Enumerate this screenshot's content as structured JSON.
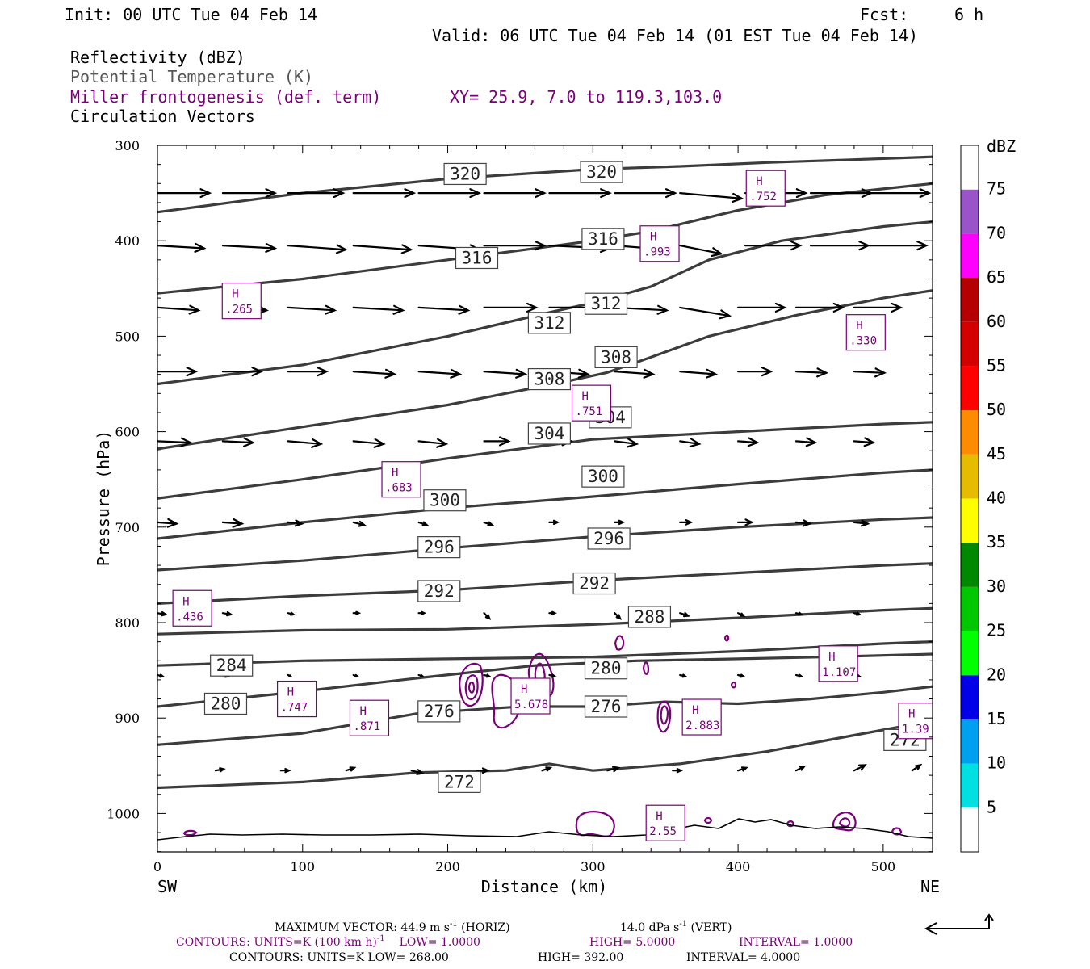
{
  "header": {
    "init": "Init: 00 UTC Tue 04 Feb 14",
    "fcst_label": "Fcst:",
    "fcst_value": "6 h",
    "valid": "Valid: 06 UTC Tue 04 Feb 14 (01 EST Tue 04 Feb 14)",
    "field1": "Reflectivity (dBZ)",
    "field2": "Potential Temperature (K)",
    "field3": "Miller frontogenesis (def. term)",
    "xy": "XY=  25.9,  7.0 to 119.3,103.0",
    "field4": "Circulation Vectors"
  },
  "colors": {
    "theta": "#3c3c3c",
    "fronto": "#7a007a",
    "vectors": "#000000",
    "field2_text": "#555555",
    "field3_text": "#7a007a"
  },
  "chart_data": {
    "type": "line",
    "xlabel": "Distance (km)",
    "ylabel": "Pressure (hPa)",
    "xlim": [
      0,
      534
    ],
    "ylim": [
      1040,
      300
    ],
    "y_scale": "linear, inverted",
    "x_ticks": [
      "0",
      "100",
      "200",
      "300",
      "400",
      "500"
    ],
    "y_ticks": [
      "300",
      "400",
      "500",
      "600",
      "700",
      "800",
      "900",
      "1000"
    ],
    "endpoints": {
      "left": "SW",
      "right": "NE"
    },
    "grid": false,
    "theta_series": [
      {
        "name": "272",
        "x": [
          0,
          100,
          180,
          240,
          270,
          300,
          360,
          420,
          480,
          534
        ],
        "y": [
          973,
          967,
          957,
          955,
          948,
          955,
          948,
          935,
          918,
          903
        ]
      },
      {
        "name": "276",
        "x": [
          0,
          100,
          180,
          250,
          300,
          350,
          400,
          450,
          500,
          534
        ],
        "y": [
          928,
          916,
          895,
          888,
          888,
          883,
          885,
          880,
          873,
          867
        ]
      },
      {
        "name": "280",
        "x": [
          0,
          100,
          180,
          260,
          330,
          400,
          460,
          534
        ],
        "y": [
          888,
          872,
          858,
          845,
          840,
          838,
          836,
          833
        ]
      },
      {
        "name": "284",
        "x": [
          0,
          100,
          200,
          300,
          400,
          500,
          534
        ],
        "y": [
          845,
          840,
          838,
          836,
          830,
          822,
          820
        ]
      },
      {
        "name": "288",
        "x": [
          0,
          100,
          200,
          300,
          400,
          500,
          534
        ],
        "y": [
          812,
          808,
          807,
          802,
          795,
          787,
          785
        ]
      },
      {
        "name": "292",
        "x": [
          0,
          100,
          200,
          300,
          400,
          500,
          534
        ],
        "y": [
          780,
          772,
          766,
          756,
          748,
          740,
          738
        ]
      },
      {
        "name": "296",
        "x": [
          0,
          100,
          200,
          300,
          400,
          500,
          534
        ],
        "y": [
          745,
          735,
          722,
          710,
          700,
          692,
          690
        ]
      },
      {
        "name": "300",
        "x": [
          0,
          100,
          200,
          300,
          400,
          500,
          534
        ],
        "y": [
          712,
          695,
          680,
          668,
          655,
          643,
          640
        ]
      },
      {
        "name": "304",
        "x": [
          0,
          100,
          200,
          300,
          400,
          500,
          534
        ],
        "y": [
          670,
          650,
          628,
          608,
          600,
          592,
          590
        ]
      },
      {
        "name": "308",
        "x": [
          0,
          100,
          200,
          280,
          310,
          340,
          380,
          440,
          500,
          534
        ],
        "y": [
          618,
          595,
          572,
          548,
          538,
          522,
          500,
          478,
          460,
          452
        ]
      },
      {
        "name": "312",
        "x": [
          0,
          100,
          200,
          270,
          300,
          340,
          380,
          430,
          500,
          534
        ],
        "y": [
          550,
          530,
          500,
          475,
          465,
          448,
          420,
          400,
          385,
          380
        ]
      },
      {
        "name": "316",
        "x": [
          0,
          100,
          200,
          260,
          300,
          340,
          400,
          460,
          534
        ],
        "y": [
          455,
          440,
          420,
          408,
          400,
          390,
          368,
          352,
          340
        ]
      },
      {
        "name": "320",
        "x": [
          0,
          100,
          200,
          300,
          360,
          420,
          480,
          534
        ],
        "y": [
          370,
          350,
          335,
          325,
          322,
          318,
          315,
          312
        ]
      }
    ],
    "theta_labels": [
      {
        "text": "320",
        "x": 212,
        "y": 330
      },
      {
        "text": "320",
        "x": 306,
        "y": 328
      },
      {
        "text": "316",
        "x": 220,
        "y": 418
      },
      {
        "text": "316",
        "x": 307,
        "y": 398
      },
      {
        "text": "312",
        "x": 270,
        "y": 486
      },
      {
        "text": "312",
        "x": 309,
        "y": 466
      },
      {
        "text": "308",
        "x": 270,
        "y": 545
      },
      {
        "text": "308",
        "x": 316,
        "y": 522
      },
      {
        "text": "304",
        "x": 270,
        "y": 602
      },
      {
        "text": "304",
        "x": 312,
        "y": 585
      },
      {
        "text": "300",
        "x": 198,
        "y": 672
      },
      {
        "text": "300",
        "x": 307,
        "y": 647
      },
      {
        "text": "296",
        "x": 194,
        "y": 721
      },
      {
        "text": "296",
        "x": 311,
        "y": 712
      },
      {
        "text": "292",
        "x": 194,
        "y": 767
      },
      {
        "text": "292",
        "x": 301,
        "y": 759
      },
      {
        "text": "288",
        "x": 339,
        "y": 794
      },
      {
        "text": "284",
        "x": 51,
        "y": 845
      },
      {
        "text": "280",
        "x": 309,
        "y": 848
      },
      {
        "text": "280",
        "x": 47,
        "y": 885
      },
      {
        "text": "276",
        "x": 194,
        "y": 893
      },
      {
        "text": "276",
        "x": 309,
        "y": 888
      },
      {
        "text": "272",
        "x": 208,
        "y": 967
      },
      {
        "text": "272",
        "x": 515,
        "y": 923
      }
    ],
    "fronto_maxima": [
      {
        "label": "H",
        "value": ".752",
        "x": 419,
        "y": 345
      },
      {
        "label": "H",
        "value": ".993",
        "x": 346,
        "y": 403
      },
      {
        "label": "H",
        "value": ".265",
        "x": 58,
        "y": 463
      },
      {
        "label": "H",
        "value": ".330",
        "x": 488,
        "y": 496
      },
      {
        "label": "H",
        "value": ".751",
        "x": 299,
        "y": 570
      },
      {
        "label": "H",
        "value": ".683",
        "x": 168,
        "y": 650
      },
      {
        "label": "H",
        "value": ".436",
        "x": 24,
        "y": 785
      },
      {
        "label": "H",
        "value": "1.107",
        "x": 469,
        "y": 843
      },
      {
        "label": "H",
        "value": ".747",
        "x": 96,
        "y": 880
      },
      {
        "label": "H",
        "value": "5.678",
        "x": 257,
        "y": 877
      },
      {
        "label": "H",
        "value": "2.883",
        "x": 375,
        "y": 899
      },
      {
        "label": "H",
        "value": ".871",
        "x": 146,
        "y": 900
      },
      {
        "label": "H",
        "value": "1.39",
        "x": 524,
        "y": 903
      },
      {
        "label": "H",
        "value": "2.55",
        "x": 350,
        "y": 1010
      }
    ],
    "vector_rows": [
      {
        "p": 350,
        "x": [
          0,
          45,
          90,
          135,
          180,
          225,
          270,
          315,
          360,
          405,
          450,
          490
        ],
        "u": [
          38,
          38,
          40,
          44,
          44,
          44,
          44,
          44,
          45,
          44,
          44,
          44
        ],
        "w": [
          0,
          0,
          0,
          0,
          0,
          0,
          0,
          0,
          -4,
          0,
          0,
          0
        ]
      },
      {
        "p": 405,
        "x": [
          0,
          45,
          90,
          135,
          180,
          225,
          270,
          315,
          360,
          405,
          450,
          490
        ],
        "u": [
          34,
          38,
          42,
          42,
          44,
          44,
          44,
          38,
          30,
          40,
          42,
          42
        ],
        "w": [
          -2,
          -2,
          -3,
          -3,
          -3,
          0,
          -2,
          -3,
          -6,
          0,
          0,
          0
        ]
      },
      {
        "p": 470,
        "x": [
          0,
          45,
          90,
          135,
          180,
          225,
          270,
          315,
          360,
          400,
          440,
          480
        ],
        "u": [
          30,
          32,
          34,
          36,
          36,
          38,
          36,
          38,
          36,
          34,
          34,
          34
        ],
        "w": [
          -2,
          -2,
          -2,
          -2,
          -2,
          0,
          0,
          -2,
          -6,
          0,
          0,
          0
        ]
      },
      {
        "p": 537,
        "x": [
          0,
          45,
          90,
          135,
          180,
          225,
          270,
          315,
          360,
          400,
          440,
          480
        ],
        "u": [
          28,
          28,
          28,
          30,
          30,
          30,
          28,
          28,
          26,
          24,
          22,
          22
        ],
        "w": [
          0,
          0,
          0,
          -2,
          -2,
          -2,
          -2,
          -2,
          -2,
          0,
          -1,
          -1
        ]
      },
      {
        "p": 610,
        "x": [
          0,
          45,
          90,
          135,
          180,
          225,
          270,
          315,
          360,
          400,
          440,
          480
        ],
        "u": [
          24,
          22,
          24,
          22,
          20,
          18,
          16,
          16,
          14,
          14,
          14,
          14
        ],
        "w": [
          -1,
          -1,
          -2,
          -2,
          -2,
          0,
          0,
          -2,
          -2,
          -1,
          -1,
          -1
        ]
      },
      {
        "p": 695,
        "x": [
          0,
          45,
          90,
          135,
          180,
          225,
          270,
          315,
          360,
          400,
          440,
          480
        ],
        "u": [
          14,
          14,
          10,
          8,
          6,
          6,
          6,
          6,
          8,
          10,
          10,
          10
        ],
        "w": [
          -1,
          -1,
          -1,
          -2,
          -2,
          -2,
          0,
          0,
          0,
          0,
          -1,
          -1
        ]
      },
      {
        "p": 790,
        "x": [
          0,
          45,
          90,
          135,
          180,
          225,
          270,
          315,
          360,
          400,
          440,
          480
        ],
        "u": [
          6,
          6,
          4,
          4,
          4,
          4,
          4,
          4,
          6,
          4,
          4,
          4
        ],
        "w": [
          -1,
          -1,
          -1,
          0,
          0,
          -4,
          0,
          -4,
          -2,
          -2,
          -1,
          -1
        ]
      },
      {
        "p": 855,
        "x": [
          0,
          45,
          90,
          135,
          180,
          225,
          270,
          315,
          360,
          400,
          440,
          480
        ],
        "u": [
          4,
          4,
          2,
          3,
          3,
          4,
          4,
          4,
          4,
          4,
          4,
          4
        ],
        "w": [
          -1,
          -1,
          -1,
          -1,
          -1,
          -1,
          -1,
          -1,
          -1,
          -1,
          -1,
          -1
        ]
      },
      {
        "p": 955,
        "x": [
          40,
          85,
          130,
          175,
          220,
          265,
          310,
          355,
          400,
          440,
          480,
          520
        ],
        "u": [
          6,
          6,
          6,
          8,
          8,
          6,
          8,
          6,
          6,
          6,
          8,
          6
        ],
        "w": [
          1,
          0,
          2,
          -2,
          0,
          2,
          2,
          0,
          2,
          3,
          4,
          4
        ]
      }
    ],
    "colorbar": {
      "label": "dBZ",
      "levels": [
        "5",
        "10",
        "15",
        "20",
        "25",
        "30",
        "35",
        "40",
        "45",
        "50",
        "55",
        "60",
        "65",
        "70",
        "75"
      ],
      "colors": [
        "#ffffff",
        "#00e0e0",
        "#00a0f0",
        "#0000e8",
        "#00ff00",
        "#00c800",
        "#008800",
        "#ffff00",
        "#e6bc00",
        "#ff8c00",
        "#ff0000",
        "#d40000",
        "#b40000",
        "#ff00ff",
        "#9955c8",
        "#ffffff"
      ]
    }
  },
  "footer": {
    "max_vector": "MAXIMUM VECTOR:  44.9 m s",
    "max_vector_exp": "-1",
    "horiz": " (HORIZ)",
    "vert_val": "14.0 dPa s",
    "vert_exp": "-1",
    "vert": " (VERT)",
    "contours1": "CONTOURS:  UNITS=K (100 km h)",
    "contours1_exp": "-1",
    "low1": "LOW=  1.0000",
    "high1": "HIGH=  5.0000",
    "interval1": "INTERVAL=   1.0000",
    "contours2": "CONTOURS:  UNITS=K  LOW=  268.00",
    "high2": "HIGH=  392.00",
    "interval2": "INTERVAL=   4.0000"
  }
}
